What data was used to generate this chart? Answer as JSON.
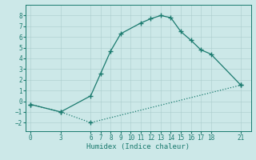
{
  "xlabel": "Humidex (Indice chaleur)",
  "xlim": [
    -0.5,
    22
  ],
  "ylim": [
    -2.8,
    9.0
  ],
  "xticks": [
    0,
    3,
    6,
    7,
    8,
    9,
    10,
    11,
    12,
    13,
    14,
    15,
    16,
    17,
    18,
    21
  ],
  "yticks": [
    -2,
    -1,
    0,
    1,
    2,
    3,
    4,
    5,
    6,
    7,
    8
  ],
  "bg_color": "#cce8e8",
  "line_color": "#1a7a6e",
  "line1_x": [
    0,
    3,
    6,
    7,
    8,
    9,
    11,
    12,
    13,
    14,
    15,
    16,
    17,
    18,
    21
  ],
  "line1_y": [
    -0.3,
    -1.0,
    0.5,
    2.6,
    4.7,
    6.3,
    7.3,
    7.7,
    8.0,
    7.8,
    6.5,
    5.7,
    4.8,
    4.4,
    1.5
  ],
  "line2_x": [
    0,
    3,
    6,
    21
  ],
  "line2_y": [
    -0.3,
    -1.0,
    -2.0,
    1.5
  ],
  "marker": "+",
  "markersize": 4,
  "markeredgewidth": 1.0,
  "linewidth": 0.9,
  "tick_fontsize": 5.5,
  "xlabel_fontsize": 6.5,
  "grid_color": "#aacccc",
  "grid_linewidth": 0.4,
  "spine_linewidth": 0.7
}
